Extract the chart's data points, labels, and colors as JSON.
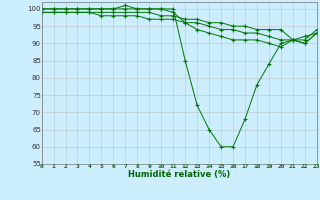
{
  "xlabel": "Humidité relative (%)",
  "background_color": "#cceeff",
  "line_color": "#007700",
  "grid_color": "#bbbbbb",
  "xlim": [
    0,
    23
  ],
  "ylim": [
    55,
    102
  ],
  "yticks": [
    55,
    60,
    65,
    70,
    75,
    80,
    85,
    90,
    95,
    100
  ],
  "xticks": [
    0,
    1,
    2,
    3,
    4,
    5,
    6,
    7,
    8,
    9,
    10,
    11,
    12,
    13,
    14,
    15,
    16,
    17,
    18,
    19,
    20,
    21,
    22,
    23
  ],
  "series": [
    [
      100,
      100,
      100,
      100,
      100,
      100,
      100,
      101,
      100,
      100,
      100,
      100,
      85,
      72,
      65,
      60,
      60,
      68,
      78,
      84,
      90,
      91,
      90,
      93
    ],
    [
      100,
      100,
      100,
      100,
      100,
      100,
      100,
      100,
      100,
      100,
      100,
      99,
      96,
      94,
      93,
      92,
      91,
      91,
      91,
      90,
      89,
      91,
      92,
      93
    ],
    [
      99,
      99,
      99,
      99,
      99,
      98,
      98,
      98,
      98,
      97,
      97,
      97,
      96,
      96,
      95,
      94,
      94,
      93,
      93,
      92,
      91,
      91,
      91,
      94
    ],
    [
      99,
      99,
      99,
      99,
      99,
      99,
      99,
      99,
      99,
      99,
      98,
      98,
      97,
      97,
      96,
      96,
      95,
      95,
      94,
      94,
      94,
      91,
      90,
      93
    ]
  ]
}
